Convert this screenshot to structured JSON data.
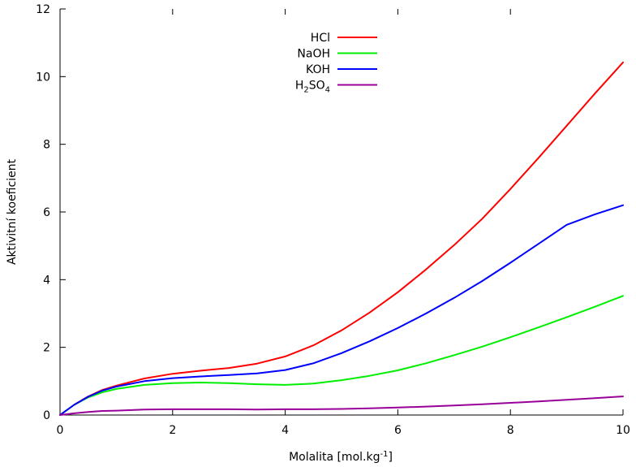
{
  "chart_data": {
    "type": "line",
    "xlabel_parts": {
      "prefix": "Molalita [mol.kg",
      "sup": "-1",
      "suffix": "]"
    },
    "ylabel": "Aktivitní koeficient",
    "xlim": [
      0,
      10
    ],
    "ylim": [
      0,
      12
    ],
    "xticks": [
      0,
      2,
      4,
      6,
      8,
      10
    ],
    "yticks": [
      0,
      2,
      4,
      6,
      8,
      10,
      12
    ],
    "grid": false,
    "legend_position": "top-center",
    "x": [
      0,
      0.25,
      0.5,
      0.75,
      1,
      1.5,
      2,
      2.5,
      3,
      3.5,
      4,
      4.5,
      5,
      5.5,
      6,
      6.5,
      7,
      7.5,
      8,
      8.5,
      9,
      9.5,
      10
    ],
    "series": [
      {
        "name": "HCl",
        "name_parts": [
          {
            "t": "HCl",
            "sub": false
          }
        ],
        "color": "#ff0000",
        "values": [
          0,
          0.3,
          0.55,
          0.74,
          0.87,
          1.08,
          1.22,
          1.31,
          1.39,
          1.52,
          1.73,
          2.06,
          2.5,
          3.03,
          3.63,
          4.3,
          5.02,
          5.8,
          6.68,
          7.6,
          8.55,
          9.5,
          10.42
        ]
      },
      {
        "name": "NaOH",
        "name_parts": [
          {
            "t": "NaOH",
            "sub": false
          }
        ],
        "color": "#00ee00",
        "values": [
          0,
          0.3,
          0.52,
          0.67,
          0.77,
          0.89,
          0.94,
          0.96,
          0.94,
          0.91,
          0.89,
          0.93,
          1.03,
          1.16,
          1.32,
          1.53,
          1.77,
          2.02,
          2.3,
          2.59,
          2.89,
          3.2,
          3.52
        ]
      },
      {
        "name": "KOH",
        "name_parts": [
          {
            "t": "KOH",
            "sub": false
          }
        ],
        "color": "#0000ff",
        "values": [
          0,
          0.3,
          0.54,
          0.72,
          0.84,
          1.0,
          1.09,
          1.14,
          1.18,
          1.23,
          1.33,
          1.53,
          1.83,
          2.18,
          2.57,
          3.0,
          3.46,
          3.96,
          4.5,
          5.06,
          5.62,
          5.93,
          6.2
        ]
      },
      {
        "name": "H2SO4",
        "name_parts": [
          {
            "t": "H",
            "sub": false
          },
          {
            "t": "2",
            "sub": true
          },
          {
            "t": "SO",
            "sub": false
          },
          {
            "t": "4",
            "sub": true
          }
        ],
        "color": "#990099",
        "values": [
          0,
          0.05,
          0.09,
          0.12,
          0.13,
          0.16,
          0.17,
          0.17,
          0.17,
          0.16,
          0.17,
          0.17,
          0.18,
          0.2,
          0.22,
          0.25,
          0.28,
          0.32,
          0.36,
          0.4,
          0.45,
          0.5,
          0.55
        ]
      }
    ]
  }
}
